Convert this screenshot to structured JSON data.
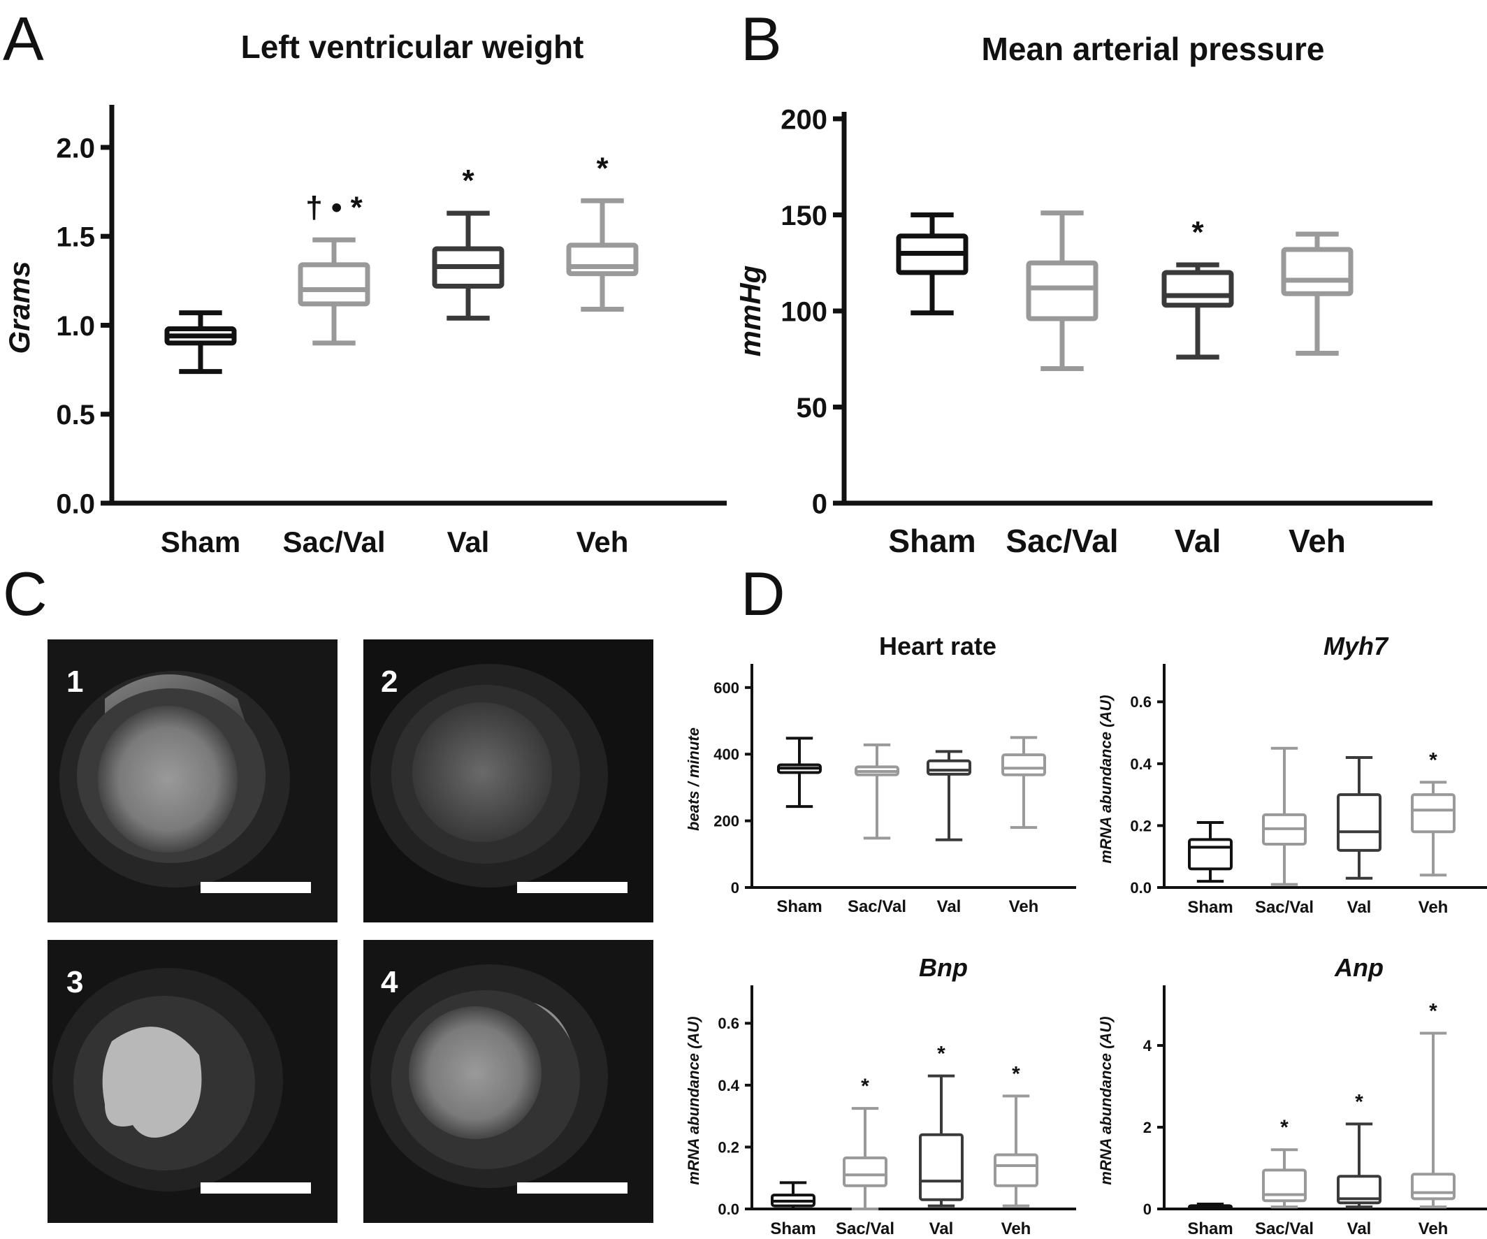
{
  "colors": {
    "Sham": "#111111",
    "Sac/Val": "#999999",
    "Val": "#3a3a3a",
    "Veh": "#9a9a9a",
    "axis": "#111111",
    "mri_background": "#141414"
  },
  "panels": {
    "A": "A",
    "B": "B",
    "C": "C",
    "D": "D"
  },
  "mri": {
    "images": [
      {
        "label": "1",
        "icon": "mri-short-axis-heart"
      },
      {
        "label": "2",
        "icon": "mri-short-axis-heart"
      },
      {
        "label": "3",
        "icon": "mri-short-axis-heart"
      },
      {
        "label": "4",
        "icon": "mri-short-axis-heart"
      }
    ]
  },
  "chart_data": [
    {
      "id": "lv-weight",
      "type": "boxplot",
      "title": "Left ventricular weight",
      "ylabel": "Grams",
      "ylim": [
        0,
        2.2
      ],
      "yticks": [
        "0.0",
        "0.5",
        "1.0",
        "1.5",
        "2.0"
      ],
      "categories": [
        "Sham",
        "Sac/Val",
        "Val",
        "Veh"
      ],
      "boxes": [
        {
          "group": "Sham",
          "min": 0.74,
          "q1": 0.9,
          "median": 0.94,
          "q3": 0.98,
          "max": 1.07,
          "annotation": ""
        },
        {
          "group": "Sac/Val",
          "min": 0.9,
          "q1": 1.12,
          "median": 1.2,
          "q3": 1.34,
          "max": 1.48,
          "annotation": "† • *"
        },
        {
          "group": "Val",
          "min": 1.04,
          "q1": 1.22,
          "median": 1.33,
          "q3": 1.43,
          "max": 1.63,
          "annotation": "*"
        },
        {
          "group": "Veh",
          "min": 1.09,
          "q1": 1.29,
          "median": 1.33,
          "q3": 1.45,
          "max": 1.7,
          "annotation": "*"
        }
      ]
    },
    {
      "id": "map",
      "type": "boxplot",
      "title": "Mean arterial pressure",
      "ylabel": "mmHg",
      "ylim": [
        0,
        200
      ],
      "yticks": [
        "0",
        "50",
        "100",
        "150",
        "200"
      ],
      "categories": [
        "Sham",
        "Sac/Val",
        "Val",
        "Veh"
      ],
      "boxes": [
        {
          "group": "Sham",
          "min": 99,
          "q1": 120,
          "median": 130,
          "q3": 139,
          "max": 150,
          "annotation": ""
        },
        {
          "group": "Sac/Val",
          "min": 70,
          "q1": 96,
          "median": 112,
          "q3": 125,
          "max": 151,
          "annotation": ""
        },
        {
          "group": "Val",
          "min": 76,
          "q1": 103,
          "median": 108,
          "q3": 120,
          "max": 124,
          "annotation": "*"
        },
        {
          "group": "Veh",
          "min": 78,
          "q1": 109,
          "median": 116,
          "q3": 132,
          "max": 140,
          "annotation": ""
        }
      ]
    },
    {
      "id": "heart-rate",
      "type": "boxplot",
      "title": "Heart rate",
      "ylabel": "beats / minute",
      "ylim": [
        0,
        650
      ],
      "yticks": [
        "0",
        "200",
        "400",
        "600"
      ],
      "categories": [
        "Sham",
        "Sac/Val",
        "Val",
        "Veh"
      ],
      "boxes": [
        {
          "group": "Sham",
          "min": 243,
          "q1": 345,
          "median": 358,
          "q3": 368,
          "max": 448,
          "annotation": ""
        },
        {
          "group": "Sac/Val",
          "min": 148,
          "q1": 338,
          "median": 348,
          "q3": 362,
          "max": 428,
          "annotation": ""
        },
        {
          "group": "Val",
          "min": 143,
          "q1": 340,
          "median": 352,
          "q3": 380,
          "max": 408,
          "annotation": ""
        },
        {
          "group": "Veh",
          "min": 180,
          "q1": 338,
          "median": 358,
          "q3": 398,
          "max": 450,
          "annotation": ""
        }
      ]
    },
    {
      "id": "myh7",
      "type": "boxplot",
      "title": "Myh7",
      "ylabel": "mRNA abundance (AU)",
      "ylim": [
        0,
        0.7
      ],
      "yticks": [
        "0.0",
        "0.2",
        "0.4",
        "0.6"
      ],
      "categories": [
        "Sham",
        "Sac/Val",
        "Val",
        "Veh"
      ],
      "boxes": [
        {
          "group": "Sham",
          "min": 0.02,
          "q1": 0.06,
          "median": 0.13,
          "q3": 0.155,
          "max": 0.21,
          "annotation": ""
        },
        {
          "group": "Sac/Val",
          "min": 0.01,
          "q1": 0.14,
          "median": 0.19,
          "q3": 0.235,
          "max": 0.45,
          "annotation": ""
        },
        {
          "group": "Val",
          "min": 0.03,
          "q1": 0.12,
          "median": 0.18,
          "q3": 0.3,
          "max": 0.42,
          "annotation": ""
        },
        {
          "group": "Veh",
          "min": 0.04,
          "q1": 0.18,
          "median": 0.25,
          "q3": 0.3,
          "max": 0.34,
          "annotation": "*"
        }
      ]
    },
    {
      "id": "bnp",
      "type": "boxplot",
      "title": "Bnp",
      "ylabel": "mRNA abundance (AU)",
      "ylim": [
        0,
        0.7
      ],
      "yticks": [
        "0.0",
        "0.2",
        "0.4",
        "0.6"
      ],
      "categories": [
        "Sham",
        "Sac/Val",
        "Val",
        "Veh"
      ],
      "boxes": [
        {
          "group": "Sham",
          "min": 0.0,
          "q1": 0.01,
          "median": 0.025,
          "q3": 0.045,
          "max": 0.085,
          "annotation": ""
        },
        {
          "group": "Sac/Val",
          "min": 0.0,
          "q1": 0.075,
          "median": 0.11,
          "q3": 0.165,
          "max": 0.325,
          "annotation": "*"
        },
        {
          "group": "Val",
          "min": 0.01,
          "q1": 0.03,
          "median": 0.09,
          "q3": 0.24,
          "max": 0.43,
          "annotation": "*"
        },
        {
          "group": "Veh",
          "min": 0.01,
          "q1": 0.075,
          "median": 0.14,
          "q3": 0.175,
          "max": 0.365,
          "annotation": "*"
        }
      ]
    },
    {
      "id": "anp",
      "type": "boxplot",
      "title": "Anp",
      "ylabel": "mRNA abundance (AU)",
      "ylim": [
        0,
        5.3
      ],
      "yticks": [
        "0",
        "2",
        "4"
      ],
      "categories": [
        "Sham",
        "Sac/Val",
        "Val",
        "Veh"
      ],
      "boxes": [
        {
          "group": "Sham",
          "min": 0.0,
          "q1": 0.02,
          "median": 0.05,
          "q3": 0.08,
          "max": 0.12,
          "annotation": ""
        },
        {
          "group": "Sac/Val",
          "min": 0.05,
          "q1": 0.2,
          "median": 0.35,
          "q3": 0.95,
          "max": 1.45,
          "annotation": "*"
        },
        {
          "group": "Val",
          "min": 0.05,
          "q1": 0.15,
          "median": 0.25,
          "q3": 0.8,
          "max": 2.08,
          "annotation": "*"
        },
        {
          "group": "Veh",
          "min": 0.05,
          "q1": 0.25,
          "median": 0.4,
          "q3": 0.85,
          "max": 4.3,
          "annotation": "*"
        }
      ]
    }
  ]
}
